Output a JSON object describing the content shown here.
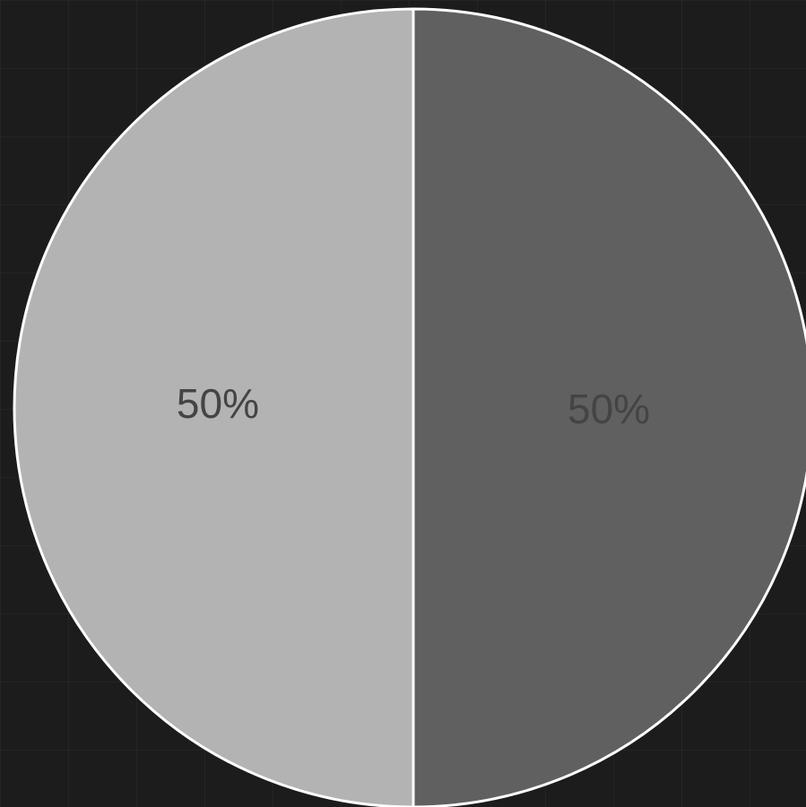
{
  "chart_data": {
    "type": "pie",
    "title": "",
    "slices": [
      {
        "value": 50,
        "label": "50%",
        "color": "#606060"
      },
      {
        "value": 50,
        "label": "50%",
        "color": "#b3b3b3"
      }
    ],
    "label_color": "#444444",
    "edge_color": "#ffffff",
    "background_color": "#1c1c1c",
    "start_angle_deg": 90,
    "direction": "clockwise"
  }
}
